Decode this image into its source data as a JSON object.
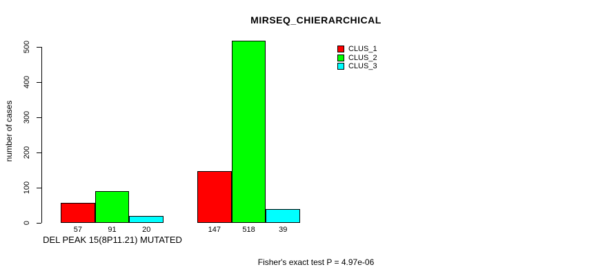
{
  "chart_data": {
    "type": "bar",
    "title": "MIRSEQ_CHIERARCHICAL",
    "ylabel": "number of cases",
    "xlabel": "DEL PEAK 15(8P11.21) MUTATED",
    "annotation": "Fisher's exact test P = 4.97e-06",
    "categories": [
      "DEL PEAK 15(8P11.21) MUTATED",
      ""
    ],
    "series": [
      {
        "name": "CLUS_1",
        "color": "#FF0000",
        "values": [
          57,
          147
        ]
      },
      {
        "name": "CLUS_2",
        "color": "#00FF00",
        "values": [
          91,
          518
        ]
      },
      {
        "name": "CLUS_3",
        "color": "#00FFFF",
        "values": [
          20,
          39
        ]
      }
    ],
    "bar_value_labels": [
      [
        57,
        91,
        20
      ],
      [
        147,
        518,
        39
      ]
    ],
    "yticks": [
      0,
      100,
      200,
      300,
      400,
      500
    ],
    "ylim": [
      0,
      520
    ],
    "grid": false,
    "legend_position": "top-right",
    "axis_color": "#000000",
    "background_color": "#FFFFFF"
  }
}
